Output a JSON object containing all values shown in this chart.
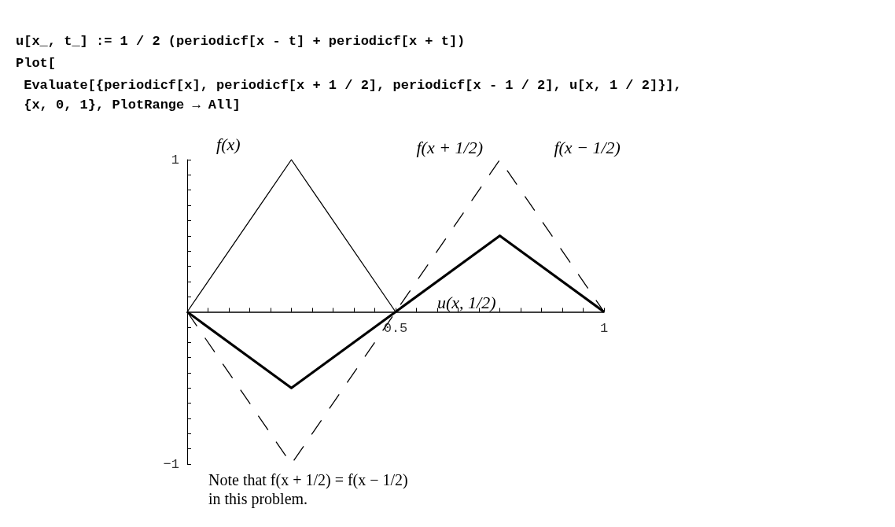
{
  "chart_data": {
    "type": "line",
    "x": [
      0,
      0.25,
      0.5,
      0.75,
      1
    ],
    "series": [
      {
        "name": "f(x)",
        "color": "#000000",
        "values": [
          0,
          1,
          0,
          null,
          null
        ],
        "line_style": "solid"
      },
      {
        "name": "f(x + 1/2)",
        "color": "#000000",
        "values": [
          0,
          -1,
          0,
          1,
          0
        ],
        "line_style": "dashed"
      },
      {
        "name": "u(x, 1/2)",
        "color": "#000000",
        "values": [
          0,
          -0.5,
          0,
          0.5,
          0
        ],
        "line_style": "solid"
      }
    ],
    "xlim": [
      0,
      1
    ],
    "xticks": [
      {
        "value": 0.05,
        "label": null
      },
      {
        "value": 0.1,
        "label": null
      },
      {
        "value": 0.15,
        "label": null
      },
      {
        "value": 0.2,
        "label": null
      },
      {
        "value": 0.25,
        "label": null
      },
      {
        "value": 0.3,
        "label": null
      },
      {
        "value": 0.35,
        "label": null
      },
      {
        "value": 0.4,
        "label": null
      },
      {
        "value": 0.45,
        "label": null
      },
      {
        "value": 0.5,
        "label": "0.5"
      },
      {
        "value": 0.55,
        "label": null
      },
      {
        "value": 0.6,
        "label": null
      },
      {
        "value": 0.65,
        "label": null
      },
      {
        "value": 0.7,
        "label": null
      },
      {
        "value": 0.75,
        "label": null
      },
      {
        "value": 0.8,
        "label": null
      },
      {
        "value": 0.85,
        "label": null
      },
      {
        "value": 0.9,
        "label": null
      },
      {
        "value": 0.95,
        "label": null
      },
      {
        "value": 1,
        "label": "1"
      }
    ],
    "ylim": [
      -1,
      1
    ],
    "yticks": [
      {
        "value": -1,
        "label": "−1"
      },
      {
        "value": -0.9,
        "label": null
      },
      {
        "value": -0.8,
        "label": null
      },
      {
        "value": -0.7,
        "label": null
      },
      {
        "value": -0.6,
        "label": null
      },
      {
        "value": -0.5,
        "label": null
      },
      {
        "value": -0.4,
        "label": null
      },
      {
        "value": -0.3,
        "label": null
      },
      {
        "value": -0.2,
        "label": null
      },
      {
        "value": -0.1,
        "label": null
      },
      {
        "value": 0.1,
        "label": null
      },
      {
        "value": 0.2,
        "label": null
      },
      {
        "value": 0.3,
        "label": null
      },
      {
        "value": 0.4,
        "label": null
      },
      {
        "value": 0.5,
        "label": null
      },
      {
        "value": 0.6,
        "label": null
      },
      {
        "value": 0.7,
        "label": null
      },
      {
        "value": 0.8,
        "label": null
      },
      {
        "value": 0.9,
        "label": null
      },
      {
        "value": 1,
        "label": "1"
      }
    ],
    "marker": "none",
    "grid": false,
    "legend": false,
    "annotations": [
      "u[x_, t_] := 1 / 2 (periodicf[x - t] + periodicf[x + t])",
      "Plot[",
      " Evaluate[{periodicf[x], periodicf[x + 1 / 2], periodicf[x - 1 / 2], u[x, 1 / 2]}],",
      " {x, 0, 1}, PlotRange → All]",
      "f(x − 1/2)",
      "Note that f(x + 1/2) = f(x − 1/2)\nin this problem."
    ]
  }
}
